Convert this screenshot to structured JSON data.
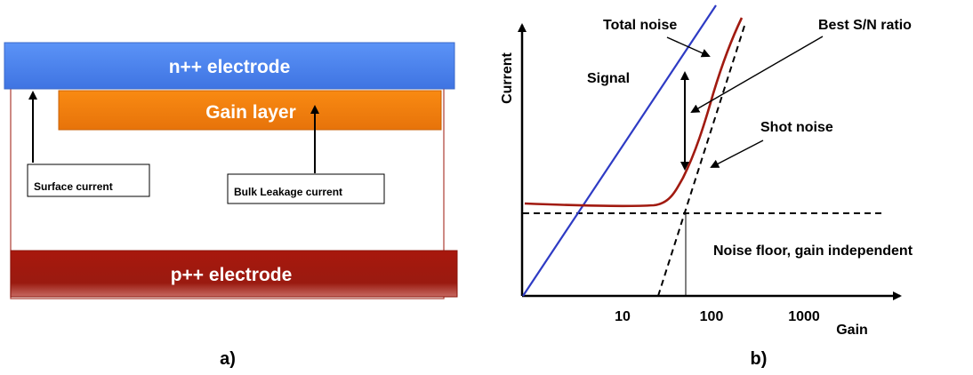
{
  "panel_a": {
    "n_electrode_label": "n++ electrode",
    "gain_layer_label": "Gain layer",
    "p_electrode_label": "p++ electrode",
    "surface_current_label": "Surface current",
    "bulk_current_label": "Bulk Leakage current",
    "caption": "a)",
    "colors": {
      "n_electrode": "#4f86f0",
      "gain_layer": "#f3820f",
      "p_electrode": "#a1180d",
      "outline": "#b24a42"
    }
  },
  "panel_b": {
    "y_axis_label": "Current",
    "x_axis_label": "Gain",
    "tick_labels": [
      "10",
      "100",
      "1000"
    ],
    "signal_label": "Signal",
    "total_noise_label": "Total noise",
    "best_sn_label": "Best S/N ratio",
    "shot_noise_label": "Shot noise",
    "noise_floor_label": "Noise floor, gain independent",
    "caption": "b)",
    "colors": {
      "signal": "#2e3bc4",
      "total_noise": "#a11a10",
      "axes": "#000000"
    }
  }
}
